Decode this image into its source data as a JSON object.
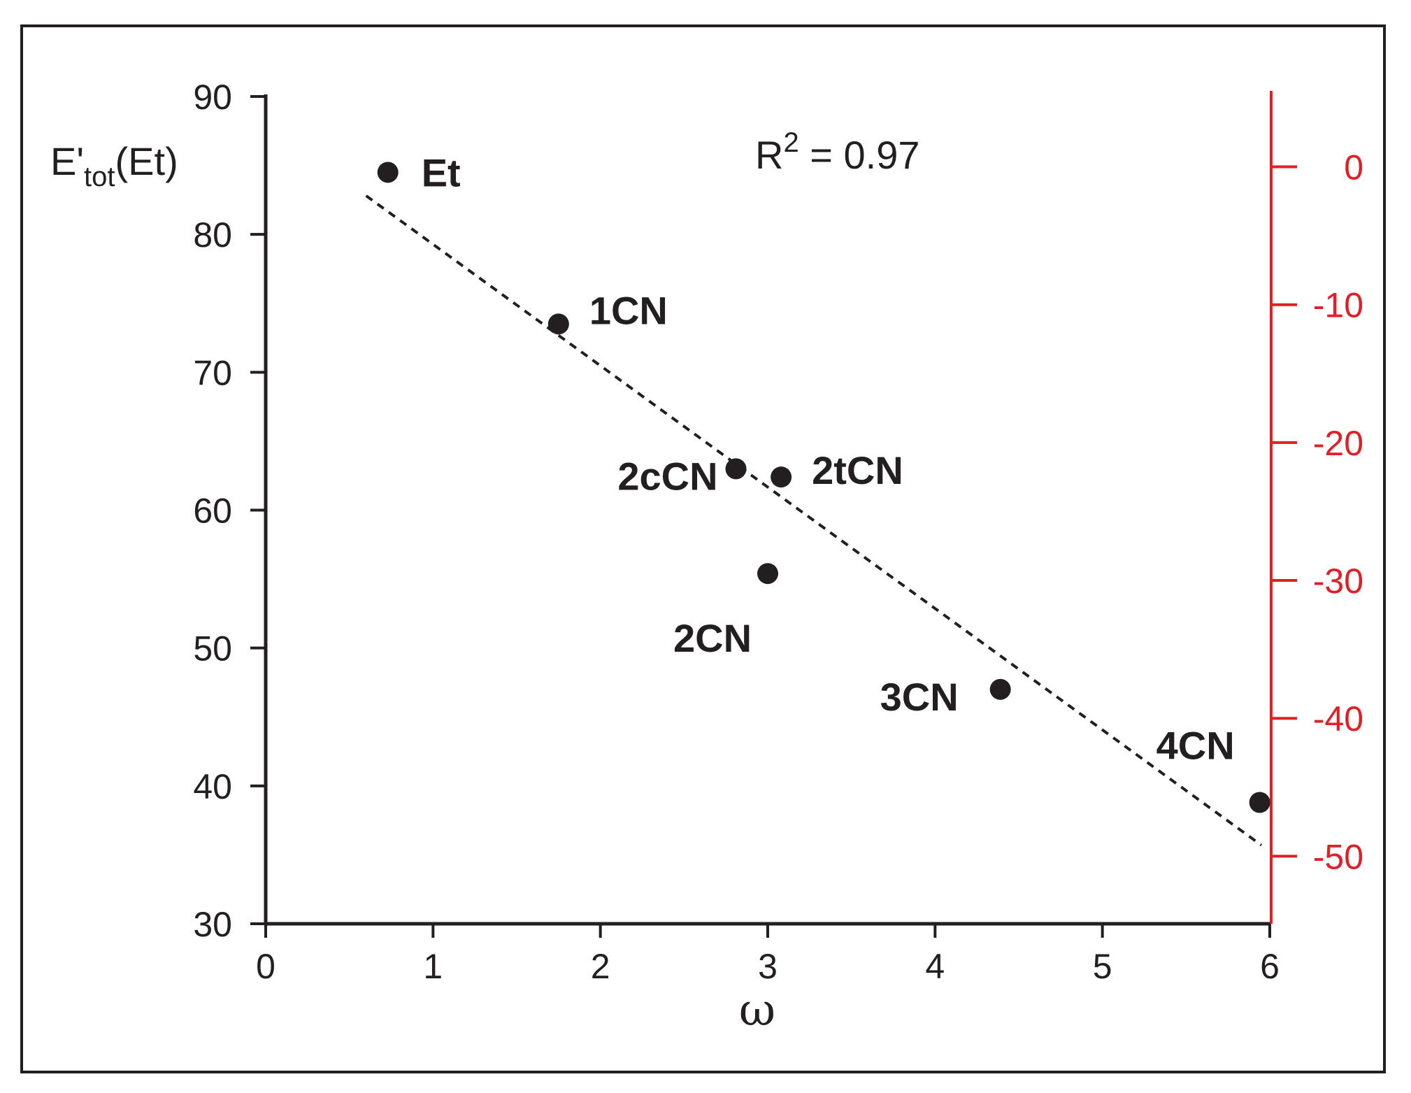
{
  "chart_data": {
    "type": "scatter",
    "xlabel": "ω",
    "ylabel": {
      "main": "E'",
      "sub": "tot",
      "tail": "(Et)"
    },
    "xlim": [
      0,
      6
    ],
    "ylim": [
      30,
      90
    ],
    "x_ticks": [
      0,
      1,
      2,
      3,
      4,
      5,
      6
    ],
    "y_ticks": [
      30,
      40,
      50,
      60,
      70,
      80,
      90
    ],
    "y2_ticks": [
      0,
      -10,
      -20,
      -30,
      -40,
      -50
    ],
    "y2_offset": -84.9,
    "annotation": {
      "prefix": "R",
      "sup": "2",
      "suffix": " = 0.97"
    },
    "points": [
      {
        "label": "Et",
        "x": 0.73,
        "y": 84.5
      },
      {
        "label": "1CN",
        "x": 1.75,
        "y": 73.5
      },
      {
        "label": "2cCN",
        "x": 2.81,
        "y": 63.0
      },
      {
        "label": "2tCN",
        "x": 3.08,
        "y": 62.4
      },
      {
        "label": "2CN",
        "x": 3.0,
        "y": 55.4
      },
      {
        "label": "3CN",
        "x": 4.39,
        "y": 47.0
      },
      {
        "label": "4CN",
        "x": 5.94,
        "y": 38.8
      }
    ],
    "fit_line": {
      "x": [
        0.6,
        5.95
      ],
      "y": [
        82.8,
        35.7
      ]
    },
    "colors": {
      "main": "#231f20",
      "secondary_axis": "#e11f26"
    }
  }
}
